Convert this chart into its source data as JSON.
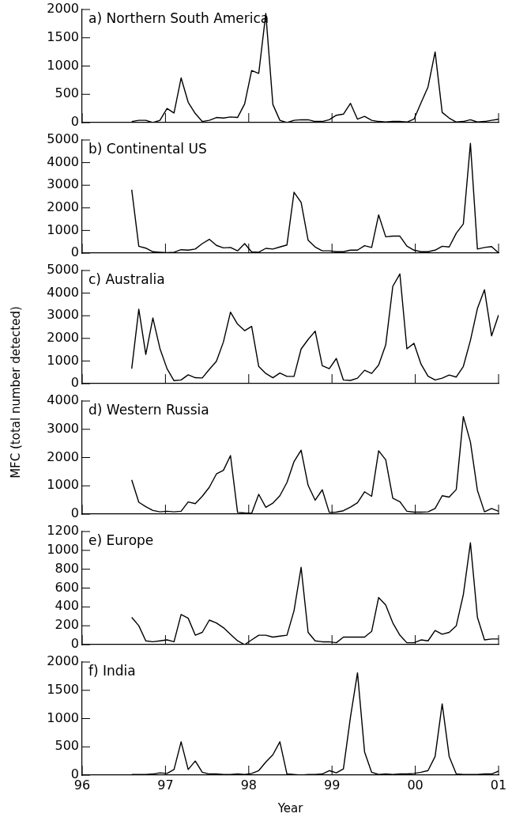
{
  "chart_data": [
    {
      "type": "line",
      "title": "a) Northern South America",
      "color": "#000000",
      "marker": "none",
      "tick_labels": "y",
      "x": [
        1996.595,
        1996.68,
        1996.764,
        1996.849,
        1996.934,
        1997.019,
        1997.103,
        1997.188,
        1997.273,
        1997.358,
        1997.442,
        1997.527,
        1997.612,
        1997.696,
        1997.781,
        1997.866,
        1997.951,
        1998.035,
        1998.12,
        1998.205,
        1998.29,
        1998.374,
        1998.459,
        1998.544,
        1998.629,
        1998.713,
        1998.798,
        1998.883,
        1998.967,
        1999.052,
        1999.137,
        1999.222,
        1999.306,
        1999.391,
        1999.476,
        1999.56,
        1999.645,
        1999.73,
        1999.815,
        1999.899,
        1999.984,
        2000.069,
        2000.153,
        2000.238,
        2000.323,
        2000.407,
        2000.492,
        2000.577,
        2000.662,
        2000.746,
        2000.831,
        2000.916,
        2001
      ],
      "values": [
        20,
        40,
        40,
        0,
        40,
        250,
        170,
        790,
        360,
        160,
        20,
        40,
        90,
        80,
        100,
        90,
        330,
        920,
        870,
        1930,
        320,
        40,
        0,
        40,
        50,
        50,
        20,
        20,
        50,
        130,
        150,
        340,
        60,
        110,
        40,
        20,
        10,
        20,
        20,
        10,
        60,
        350,
        630,
        1250,
        180,
        80,
        10,
        20,
        50,
        10,
        20,
        40,
        60
      ],
      "xlim": [
        1996,
        2001
      ],
      "xticks": [
        {
          "value": 1996,
          "label": null
        },
        {
          "value": 1997,
          "label": null
        },
        {
          "value": 1998,
          "label": null
        },
        {
          "value": 1999,
          "label": null
        },
        {
          "value": 2000,
          "label": null
        },
        {
          "value": 2001,
          "label": null
        }
      ],
      "ylim": [
        0,
        2000
      ],
      "yticks": [
        0,
        500,
        1000,
        1500,
        2000
      ]
    },
    {
      "type": "line",
      "title": "b) Continental US",
      "color": "#000000",
      "marker": "none",
      "tick_labels": "y",
      "x": [
        1996.595,
        1996.68,
        1996.764,
        1996.849,
        1996.934,
        1997.019,
        1997.103,
        1997.188,
        1997.273,
        1997.358,
        1997.442,
        1997.527,
        1997.612,
        1997.696,
        1997.781,
        1997.866,
        1997.951,
        1998.035,
        1998.12,
        1998.205,
        1998.29,
        1998.374,
        1998.459,
        1998.544,
        1998.629,
        1998.713,
        1998.798,
        1998.883,
        1998.967,
        1999.052,
        1999.137,
        1999.222,
        1999.306,
        1999.391,
        1999.476,
        1999.56,
        1999.645,
        1999.73,
        1999.815,
        1999.899,
        1999.984,
        2000.069,
        2000.153,
        2000.238,
        2000.323,
        2000.407,
        2000.492,
        2000.577,
        2000.662,
        2000.746,
        2000.831,
        2000.916,
        2001
      ],
      "values": [
        2800,
        300,
        220,
        60,
        40,
        20,
        40,
        150,
        130,
        180,
        420,
        610,
        340,
        230,
        250,
        100,
        420,
        50,
        40,
        210,
        180,
        270,
        360,
        2690,
        2240,
        570,
        270,
        100,
        100,
        60,
        60,
        130,
        130,
        330,
        250,
        1690,
        720,
        750,
        750,
        310,
        130,
        60,
        60,
        130,
        300,
        270,
        880,
        1290,
        4850,
        180,
        250,
        290,
        10
      ],
      "xlim": [
        1996,
        2001
      ],
      "xticks": [
        {
          "value": 1996,
          "label": null
        },
        {
          "value": 1997,
          "label": null
        },
        {
          "value": 1998,
          "label": null
        },
        {
          "value": 1999,
          "label": null
        },
        {
          "value": 2000,
          "label": null
        },
        {
          "value": 2001,
          "label": null
        }
      ],
      "ylim": [
        0,
        5000
      ],
      "yticks": [
        0,
        1000,
        2000,
        3000,
        4000,
        5000
      ]
    },
    {
      "type": "line",
      "title": "c) Australia",
      "ylabel": "MFC (total number detected)",
      "color": "#000000",
      "marker": "none",
      "tick_labels": "y",
      "x": [
        1996.595,
        1996.68,
        1996.764,
        1996.849,
        1996.934,
        1997.019,
        1997.103,
        1997.188,
        1997.273,
        1997.358,
        1997.442,
        1997.527,
        1997.612,
        1997.696,
        1997.781,
        1997.866,
        1997.951,
        1998.035,
        1998.12,
        1998.205,
        1998.29,
        1998.374,
        1998.459,
        1998.544,
        1998.629,
        1998.713,
        1998.798,
        1998.883,
        1998.967,
        1999.052,
        1999.137,
        1999.222,
        1999.306,
        1999.391,
        1999.476,
        1999.56,
        1999.645,
        1999.73,
        1999.815,
        1999.899,
        1999.984,
        2000.069,
        2000.153,
        2000.238,
        2000.323,
        2000.407,
        2000.492,
        2000.577,
        2000.662,
        2000.746,
        2000.831,
        2000.916,
        2001
      ],
      "values": [
        660,
        3290,
        1290,
        2900,
        1550,
        660,
        130,
        160,
        390,
        260,
        250,
        630,
        990,
        1840,
        3160,
        2630,
        2340,
        2530,
        760,
        450,
        260,
        470,
        320,
        320,
        1530,
        1950,
        2320,
        790,
        660,
        1110,
        160,
        140,
        240,
        590,
        450,
        820,
        1710,
        4300,
        4850,
        1540,
        1780,
        860,
        330,
        160,
        240,
        380,
        290,
        760,
        1910,
        3320,
        4150,
        2110,
        3030
      ],
      "xlim": [
        1996,
        2001
      ],
      "xticks": [
        {
          "value": 1996,
          "label": null
        },
        {
          "value": 1997,
          "label": null
        },
        {
          "value": 1998,
          "label": null
        },
        {
          "value": 1999,
          "label": null
        },
        {
          "value": 2000,
          "label": null
        },
        {
          "value": 2001,
          "label": null
        }
      ],
      "ylim": [
        0,
        5000
      ],
      "yticks": [
        0,
        1000,
        2000,
        3000,
        4000,
        5000
      ]
    },
    {
      "type": "line",
      "title": "d) Western Russia",
      "color": "#000000",
      "marker": "none",
      "tick_labels": "y",
      "x": [
        1996.595,
        1996.68,
        1996.764,
        1996.849,
        1996.934,
        1997.019,
        1997.103,
        1997.188,
        1997.273,
        1997.358,
        1997.442,
        1997.527,
        1997.612,
        1997.696,
        1997.781,
        1997.866,
        1997.951,
        1998.035,
        1998.12,
        1998.205,
        1998.29,
        1998.374,
        1998.459,
        1998.544,
        1998.629,
        1998.713,
        1998.798,
        1998.883,
        1998.967,
        1999.052,
        1999.137,
        1999.222,
        1999.306,
        1999.391,
        1999.476,
        1999.56,
        1999.645,
        1999.73,
        1999.815,
        1999.899,
        1999.984,
        2000.069,
        2000.153,
        2000.238,
        2000.323,
        2000.407,
        2000.492,
        2000.577,
        2000.662,
        2000.746,
        2000.831,
        2000.916,
        2001
      ],
      "values": [
        1210,
        420,
        260,
        130,
        80,
        100,
        80,
        100,
        430,
        370,
        630,
        950,
        1420,
        1550,
        2070,
        60,
        40,
        30,
        700,
        240,
        390,
        650,
        1120,
        1860,
        2260,
        1020,
        490,
        860,
        60,
        70,
        120,
        250,
        400,
        790,
        630,
        2240,
        1920,
        560,
        440,
        100,
        70,
        70,
        80,
        200,
        650,
        600,
        870,
        3450,
        2550,
        840,
        80,
        200,
        100
      ],
      "xlim": [
        1996,
        2001
      ],
      "xticks": [
        {
          "value": 1996,
          "label": null
        },
        {
          "value": 1997,
          "label": null
        },
        {
          "value": 1998,
          "label": null
        },
        {
          "value": 1999,
          "label": null
        },
        {
          "value": 2000,
          "label": null
        },
        {
          "value": 2001,
          "label": null
        }
      ],
      "ylim": [
        0,
        4000
      ],
      "yticks": [
        0,
        1000,
        2000,
        3000,
        4000
      ]
    },
    {
      "type": "line",
      "title": "e) Europe",
      "color": "#000000",
      "marker": "none",
      "tick_labels": "y",
      "x": [
        1996.595,
        1996.68,
        1996.764,
        1996.849,
        1996.934,
        1997.019,
        1997.103,
        1997.188,
        1997.273,
        1997.358,
        1997.442,
        1997.527,
        1997.612,
        1997.696,
        1997.781,
        1997.866,
        1997.951,
        1998.035,
        1998.12,
        1998.205,
        1998.29,
        1998.374,
        1998.459,
        1998.544,
        1998.629,
        1998.713,
        1998.798,
        1998.883,
        1998.967,
        1999.052,
        1999.137,
        1999.222,
        1999.306,
        1999.391,
        1999.476,
        1999.56,
        1999.645,
        1999.73,
        1999.815,
        1999.899,
        1999.984,
        2000.069,
        2000.153,
        2000.238,
        2000.323,
        2000.407,
        2000.492,
        2000.577,
        2000.662,
        2000.746,
        2000.831,
        2000.916,
        2001
      ],
      "values": [
        290,
        200,
        40,
        30,
        40,
        50,
        30,
        320,
        280,
        100,
        130,
        260,
        230,
        180,
        110,
        40,
        0,
        50,
        100,
        100,
        80,
        90,
        100,
        360,
        820,
        130,
        40,
        30,
        30,
        20,
        80,
        80,
        80,
        80,
        140,
        500,
        420,
        230,
        100,
        20,
        20,
        50,
        40,
        150,
        110,
        130,
        200,
        530,
        1080,
        290,
        50,
        60,
        60
      ],
      "xlim": [
        1996,
        2001
      ],
      "xticks": [
        {
          "value": 1996,
          "label": null
        },
        {
          "value": 1997,
          "label": null
        },
        {
          "value": 1998,
          "label": null
        },
        {
          "value": 1999,
          "label": null
        },
        {
          "value": 2000,
          "label": null
        },
        {
          "value": 2001,
          "label": null
        }
      ],
      "ylim": [
        0,
        1200
      ],
      "yticks": [
        0,
        200,
        400,
        600,
        800,
        1000,
        1200
      ]
    },
    {
      "type": "line",
      "title": "f) India",
      "xlabel": "Year",
      "color": "#000000",
      "marker": "none",
      "x": [
        1996.595,
        1996.68,
        1996.764,
        1996.849,
        1996.934,
        1997.019,
        1997.103,
        1997.188,
        1997.273,
        1997.358,
        1997.442,
        1997.527,
        1997.612,
        1997.696,
        1997.781,
        1997.866,
        1997.951,
        1998.035,
        1998.12,
        1998.205,
        1998.29,
        1998.374,
        1998.459,
        1998.544,
        1998.629,
        1998.713,
        1998.798,
        1998.883,
        1998.967,
        1999.052,
        1999.137,
        1999.222,
        1999.306,
        1999.391,
        1999.476,
        1999.56,
        1999.645,
        1999.73,
        1999.815,
        1999.899,
        1999.984,
        2000.069,
        2000.153,
        2000.238,
        2000.323,
        2000.407,
        2000.492,
        2000.577,
        2000.662,
        2000.746,
        2000.831,
        2000.916,
        2001
      ],
      "values": [
        10,
        10,
        10,
        20,
        40,
        30,
        100,
        590,
        100,
        250,
        50,
        20,
        20,
        10,
        10,
        20,
        10,
        30,
        80,
        230,
        360,
        590,
        20,
        10,
        0,
        10,
        10,
        20,
        80,
        40,
        110,
        1030,
        1810,
        410,
        50,
        10,
        20,
        10,
        20,
        20,
        30,
        50,
        80,
        330,
        1260,
        330,
        20,
        10,
        10,
        10,
        20,
        20,
        70
      ],
      "xlim": [
        1996,
        2001
      ],
      "xticks": [
        {
          "value": 1996,
          "label": "96"
        },
        {
          "value": 1997,
          "label": "97"
        },
        {
          "value": 1998,
          "label": "98"
        },
        {
          "value": 1999,
          "label": "99"
        },
        {
          "value": 2000,
          "label": "00"
        },
        {
          "value": 2001,
          "label": "01"
        }
      ],
      "ylim": [
        0,
        2000
      ],
      "yticks": [
        0,
        500,
        1000,
        1500,
        2000
      ]
    }
  ]
}
